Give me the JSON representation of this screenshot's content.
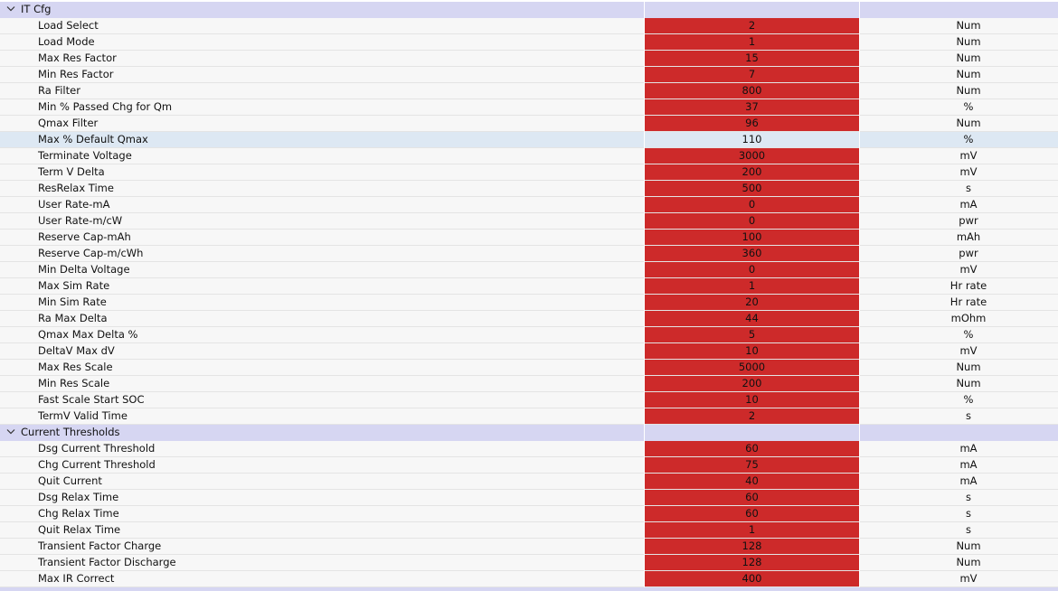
{
  "groups": [
    {
      "title": "IT Cfg",
      "rows": [
        {
          "name": "Load Select",
          "value": 2,
          "unit": "Num",
          "color": "#cd2a2a"
        },
        {
          "name": "Load Mode",
          "value": 1,
          "unit": "Num",
          "color": "#cd2a2a"
        },
        {
          "name": "Max Res Factor",
          "value": 15,
          "unit": "Num",
          "color": "#cd2a2a"
        },
        {
          "name": "Min Res Factor",
          "value": 7,
          "unit": "Num",
          "color": "#cd2a2a"
        },
        {
          "name": "Ra Filter",
          "value": 800,
          "unit": "Num",
          "color": "#cd2a2a"
        },
        {
          "name": "Min % Passed Chg for Qm",
          "value": 37,
          "unit": "%",
          "color": "#cd2a2a"
        },
        {
          "name": "Qmax Filter",
          "value": 96,
          "unit": "Num",
          "color": "#cd2a2a"
        },
        {
          "name": "Max % Default Qmax",
          "value": 110,
          "unit": "%",
          "color": "#dde8f3"
        },
        {
          "name": "Terminate Voltage",
          "value": 3000,
          "unit": "mV",
          "color": "#cd2a2a"
        },
        {
          "name": "Term V Delta",
          "value": 200,
          "unit": "mV",
          "color": "#cd2a2a"
        },
        {
          "name": "ResRelax Time",
          "value": 500,
          "unit": "s",
          "color": "#cd2a2a"
        },
        {
          "name": "User Rate-mA",
          "value": 0,
          "unit": "mA",
          "color": "#cd2a2a"
        },
        {
          "name": "User Rate-m/cW",
          "value": 0,
          "unit": "pwr",
          "color": "#cd2a2a"
        },
        {
          "name": "Reserve Cap-mAh",
          "value": 100,
          "unit": "mAh",
          "color": "#cd2a2a"
        },
        {
          "name": "Reserve Cap-m/cWh",
          "value": 360,
          "unit": "pwr",
          "color": "#cd2a2a"
        },
        {
          "name": "Min Delta Voltage",
          "value": 0,
          "unit": "mV",
          "color": "#cd2a2a"
        },
        {
          "name": "Max Sim Rate",
          "value": 1,
          "unit": "Hr rate",
          "color": "#cd2a2a"
        },
        {
          "name": "Min Sim Rate",
          "value": 20,
          "unit": "Hr rate",
          "color": "#cd2a2a"
        },
        {
          "name": "Ra Max Delta",
          "value": 44,
          "unit": "mOhm",
          "color": "#cd2a2a"
        },
        {
          "name": "Qmax Max Delta %",
          "value": 5,
          "unit": "%",
          "color": "#cd2a2a"
        },
        {
          "name": "DeltaV Max dV",
          "value": 10,
          "unit": "mV",
          "color": "#cd2a2a"
        },
        {
          "name": "Max Res Scale",
          "value": 5000,
          "unit": "Num",
          "color": "#cd2a2a"
        },
        {
          "name": "Min Res Scale",
          "value": 200,
          "unit": "Num",
          "color": "#cd2a2a"
        },
        {
          "name": "Fast Scale Start SOC",
          "value": 10,
          "unit": "%",
          "color": "#cd2a2a"
        },
        {
          "name": "TermV Valid Time",
          "value": 2,
          "unit": "s",
          "color": "#cd2a2a"
        }
      ]
    },
    {
      "title": "Current Thresholds",
      "rows": [
        {
          "name": "Dsg Current Threshold",
          "value": 60,
          "unit": "mA",
          "color": "#cd2a2a"
        },
        {
          "name": "Chg Current Threshold",
          "value": 75,
          "unit": "mA",
          "color": "#cd2a2a"
        },
        {
          "name": "Quit Current",
          "value": 40,
          "unit": "mA",
          "color": "#cd2a2a"
        },
        {
          "name": "Dsg Relax Time",
          "value": 60,
          "unit": "s",
          "color": "#cd2a2a"
        },
        {
          "name": "Chg Relax Time",
          "value": 60,
          "unit": "s",
          "color": "#cd2a2a"
        },
        {
          "name": "Quit Relax Time",
          "value": 1,
          "unit": "s",
          "color": "#cd2a2a"
        },
        {
          "name": "Transient Factor Charge",
          "value": 128,
          "unit": "Num",
          "color": "#cd2a2a"
        },
        {
          "name": "Transient Factor Discharge",
          "value": 128,
          "unit": "Num",
          "color": "#cd2a2a"
        },
        {
          "name": "Max IR Correct",
          "value": 400,
          "unit": "mV",
          "color": "#cd2a2a"
        }
      ]
    }
  ]
}
